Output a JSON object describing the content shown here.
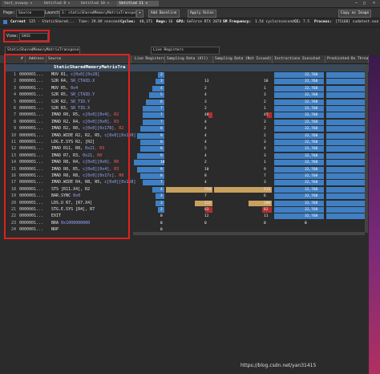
{
  "window": {
    "tabs": [
      "test_nsvwsp ×",
      "Untitled 8 ×",
      "Untitled 10 ×",
      "Untitled 11 ×"
    ],
    "controls": [
      "–",
      "□",
      "×"
    ]
  },
  "toolbar": {
    "page_label": "Page:",
    "page_value": "Source",
    "launch_label": "Launch:",
    "launch_value": "1: staticSharedMemoryMatrixTranspose",
    "add_baseline": "Add Baseline",
    "apply_rules": "Apply Rules",
    "copy_image": "Copy as Image"
  },
  "info": {
    "current_label": "Current",
    "current_value": "125 - StaticShared...",
    "time_label": "Time:",
    "time_value": "29.09 nsecond",
    "cycles_label": "Cycles:",
    "cycles_value": "40,371",
    "regs_label": "Regs:",
    "regs_value": "16",
    "gpu_label": "GPU:",
    "gpu_value": "GeForce RTX 2070",
    "sm_label": "SM Frequency:",
    "sm_value": "1.54 cycle/nsecond",
    "cc_label": "CC:",
    "cc_value": "7.5",
    "process_label": "Process:",
    "process_value": "[75168] cudatest.exe"
  },
  "view": {
    "label": "View:",
    "value": "SASS"
  },
  "second_row": {
    "function": "StaticSharedMemoryMatrixTranspose",
    "metric": "Live Registers"
  },
  "columns": {
    "num": "#",
    "address": "Address",
    "source": "Source",
    "live_registers": "Live Registers",
    "sampling_all": "Sampling Data (All)",
    "sampling_not_issued": "Sampling Data (Not Issued)",
    "instructions_executed": "Instructions Executed",
    "predicated_on": "Predicated-On Threa"
  },
  "function_name": "StaticSharedMemoryMatrixTra",
  "rows": [
    {
      "n": "1",
      "addr": "0000001...",
      "op": "MOV",
      "args": [
        [
          "R1, ",
          ""
        ],
        [
          "c[0x0][0x28]",
          "a"
        ]
      ],
      "lr": 2,
      "sa": "",
      "sn": "",
      "ie": "32,768"
    },
    {
      "n": "2",
      "addr": "0000001...",
      "op": "S2R",
      "args": [
        [
          "R4, ",
          ""
        ],
        [
          "SR_CTAID.X",
          "a"
        ]
      ],
      "lr": 3,
      "sa": "13",
      "sn": "10",
      "ie": "32,768"
    },
    {
      "n": "3",
      "addr": "0000001...",
      "op": "MOV",
      "args": [
        [
          "R5, ",
          ""
        ],
        [
          "0x4",
          "a"
        ]
      ],
      "lr": 4,
      "sa": "2",
      "sn": "1",
      "ie": "32,768"
    },
    {
      "n": "4",
      "addr": "0000001...",
      "op": "S2R",
      "args": [
        [
          "R5, ",
          ""
        ],
        [
          "SR_CTAID.Y",
          "a"
        ]
      ],
      "lr": 5,
      "sa": "4",
      "sn": "3",
      "ie": "32,768"
    },
    {
      "n": "5",
      "addr": "0000001...",
      "op": "S2R",
      "args": [
        [
          "R2, ",
          ""
        ],
        [
          "SR_TID.Y",
          "a"
        ]
      ],
      "lr": 6,
      "sa": "3",
      "sn": "2",
      "ie": "32,768"
    },
    {
      "n": "6",
      "addr": "0000001...",
      "op": "S2R",
      "args": [
        [
          "R3, ",
          ""
        ],
        [
          "SR_TID.X",
          "a"
        ]
      ],
      "lr": 7,
      "sa": "2",
      "sn": "1",
      "ie": "32,768"
    },
    {
      "n": "7",
      "addr": "0000001...",
      "op": "IMAD",
      "args": [
        [
          "R0, R5, ",
          ""
        ],
        [
          "c[0x0][0x4]",
          "a"
        ],
        [
          ", R2",
          "r"
        ]
      ],
      "lr": 7,
      "sa": "48",
      "sn": "45",
      "ie": "32,768"
    },
    {
      "n": "8",
      "addr": "0000001...",
      "op": "IMAD",
      "args": [
        [
          "R2, R4, ",
          ""
        ],
        [
          "c[0x0][0x0]",
          "a"
        ],
        [
          ", R3",
          "r"
        ]
      ],
      "lr": 7,
      "sa": "4",
      "sn": "3",
      "ie": "32,768"
    },
    {
      "n": "9",
      "addr": "0000001...",
      "op": "IMAD",
      "args": [
        [
          "R2, R0, ",
          ""
        ],
        [
          "c[0x0][0x178]",
          "a"
        ],
        [
          ", R2",
          "r"
        ]
      ],
      "lr": 8,
      "sa": "4",
      "sn": "2",
      "ie": "32,768"
    },
    {
      "n": "10",
      "addr": "0000001...",
      "op": "IMAD.WIDE",
      "args": [
        [
          "R2, R2, R5, ",
          ""
        ],
        [
          "c[0x0][0x160]",
          "a"
        ]
      ],
      "lr": 9,
      "sa": "4",
      "sn": "2",
      "ie": "32,768"
    },
    {
      "n": "11",
      "addr": "0000001...",
      "op": "LDG.E.SYS",
      "args": [
        [
          "R2, [R2]",
          ""
        ]
      ],
      "lr": 8,
      "sa": "4",
      "sn": "3",
      "ie": "32,768"
    },
    {
      "n": "12",
      "addr": "0000001...",
      "op": "IMAD",
      "args": [
        [
          "R11, R0, ",
          ""
        ],
        [
          "0x21",
          "a"
        ],
        [
          ", R3",
          "r"
        ]
      ],
      "lr": 8,
      "sa": "5",
      "sn": "4",
      "ie": "32,768"
    },
    {
      "n": "13",
      "addr": "0000001...",
      "op": "IMAD",
      "args": [
        [
          "R7, R3, ",
          ""
        ],
        [
          "0x21",
          "a"
        ],
        [
          ", R0",
          "r"
        ]
      ],
      "lr": 9,
      "sa": "4",
      "sn": "3",
      "ie": "32,768"
    },
    {
      "n": "14",
      "addr": "0000001...",
      "op": "IMAD",
      "args": [
        [
          "R8, R4, ",
          ""
        ],
        [
          "c[0x0][0x0]",
          "a"
        ],
        [
          ", R0",
          "r"
        ]
      ],
      "lr": 10,
      "sa": "2",
      "sn": "1",
      "ie": "32,768"
    },
    {
      "n": "15",
      "addr": "0000001...",
      "op": "IMAD",
      "args": [
        [
          "R0, R5, ",
          ""
        ],
        [
          "c[0x0][0x4]",
          "a"
        ],
        [
          ", R3",
          "r"
        ]
      ],
      "lr": 9,
      "sa": "10",
      "sn": "9",
      "ie": "32,768"
    },
    {
      "n": "16",
      "addr": "0000001...",
      "op": "IMAD",
      "args": [
        [
          "R8, R8, ",
          ""
        ],
        [
          "c[0x0][0x17c]",
          "a"
        ],
        [
          ", R0",
          "r"
        ]
      ],
      "lr": 8,
      "sa": "8",
      "sn": "7",
      "ie": "32,768"
    },
    {
      "n": "17",
      "addr": "0000001...",
      "op": "IMAD.WIDE",
      "args": [
        [
          "R4, R8, R5, ",
          ""
        ],
        [
          "c[0x0][0x168]",
          "a"
        ]
      ],
      "lr": 7,
      "sa": "4",
      "sn": "3",
      "ie": "32,768"
    },
    {
      "n": "18",
      "addr": "0000001...",
      "op": "STS",
      "args": [
        [
          "[R11.X4], R2",
          ""
        ]
      ],
      "lr": 4,
      "sa": "558",
      "sn": "513",
      "ie": "32,768"
    },
    {
      "n": "19",
      "addr": "0000001...",
      "op": "BAR.SYNC",
      "args": [
        [
          "0x0",
          "a"
        ]
      ],
      "lr": 3,
      "sa": "7",
      "sn": "6",
      "ie": "32,768"
    },
    {
      "n": "20",
      "addr": "0000001...",
      "op": "LDS.U",
      "args": [
        [
          "R7, [R7.X4]",
          ""
        ]
      ],
      "lr": 3,
      "sa": "211",
      "sn": "208",
      "ie": "32,768"
    },
    {
      "n": "21",
      "addr": "0000001...",
      "op": "STG.E.SYS",
      "args": [
        [
          "[R4], R7",
          ""
        ]
      ],
      "lr": 2,
      "sa": "83",
      "sn": "82",
      "ie": "32,768"
    },
    {
      "n": "22",
      "addr": "0000001...",
      "op": "EXIT",
      "args": [],
      "lr": 0,
      "sa": "12",
      "sn": "11",
      "ie": "32,768"
    },
    {
      "n": "23",
      "addr": "0000001...",
      "op": "BRA",
      "args": [
        [
          "0x1000000000",
          "a"
        ]
      ],
      "lr": 0,
      "sa": "0",
      "sn": "0",
      "ie": "0"
    },
    {
      "n": "24",
      "addr": "0000001...",
      "op": "NOP",
      "args": [],
      "lr": 0,
      "sa": "",
      "sn": "",
      "ie": ""
    }
  ],
  "footer": "https://blog.csdn.net/yan31415",
  "colors": {
    "bar_blue": "#3f7fc4",
    "bar_tan": "#c8a060",
    "bar_red": "#b03030",
    "highlight": "#e02020"
  }
}
